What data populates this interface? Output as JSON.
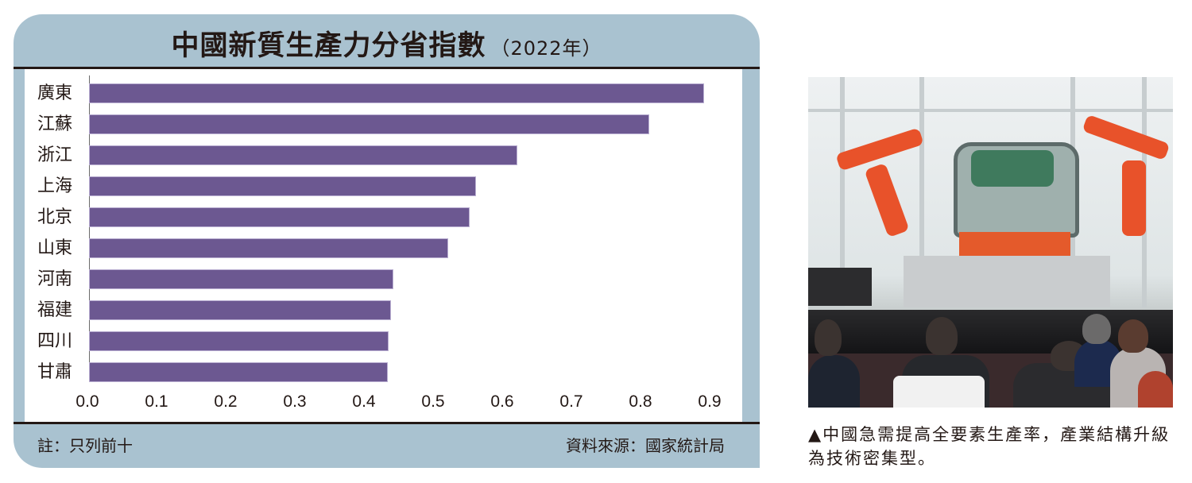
{
  "header": {
    "title": "中國新質生產力分省指數",
    "year": "（2022年）"
  },
  "footer": {
    "note": "註：只列前十",
    "source": "資料來源：國家統計局"
  },
  "photo": {
    "description": "factory-robot-assembly-line-photo"
  },
  "caption": "▲中國急需提高全要素生產率，產業結構升級為技術密集型。",
  "colors": {
    "bar": "#6c5891",
    "frame": "#a9c2d0",
    "rule": "#231815"
  },
  "chart_data": {
    "type": "bar",
    "orientation": "horizontal",
    "title": "中國新質生產力分省指數（2022年）",
    "xlabel": "",
    "ylabel": "",
    "categories": [
      "廣東",
      "江蘇",
      "浙江",
      "上海",
      "北京",
      "山東",
      "河南",
      "福建",
      "四川",
      "甘肅"
    ],
    "values": [
      0.89,
      0.81,
      0.62,
      0.56,
      0.55,
      0.52,
      0.44,
      0.437,
      0.433,
      0.432
    ],
    "xlim": [
      0.0,
      0.9
    ],
    "xticks": [
      "0.0",
      "0.1",
      "0.2",
      "0.3",
      "0.4",
      "0.5",
      "0.6",
      "0.7",
      "0.8",
      "0.9"
    ],
    "grid": false,
    "legend": null,
    "annotations": [
      "註：只列前十",
      "資料來源：國家統計局"
    ]
  }
}
